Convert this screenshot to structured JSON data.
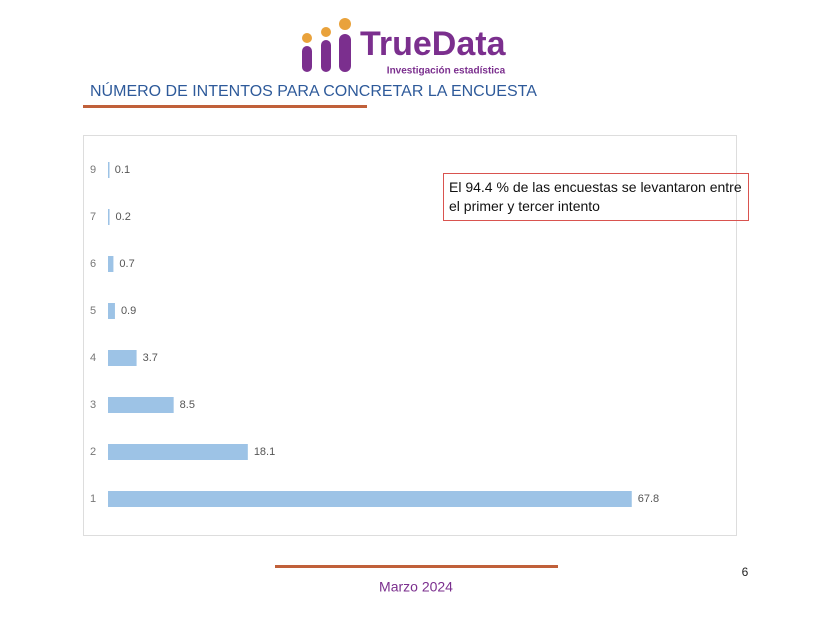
{
  "logo": {
    "name": "TrueData",
    "tagline": "Investigación estadística"
  },
  "heading": "NÚMERO DE INTENTOS PARA CONCRETAR LA ENCUESTA",
  "chart_data": {
    "type": "hbar",
    "categories": [
      "9",
      "7",
      "6",
      "5",
      "4",
      "3",
      "2",
      "1"
    ],
    "values": [
      0.1,
      0.2,
      0.7,
      0.9,
      3.7,
      8.5,
      18.1,
      67.8
    ],
    "color": "#9dc3e6",
    "xlim": [
      0,
      80
    ],
    "annotation": "El 94.4 % de las encuestas se levantaron entre el primer y tercer intento"
  },
  "footer": {
    "date": "Marzo 2024",
    "page": "6"
  }
}
